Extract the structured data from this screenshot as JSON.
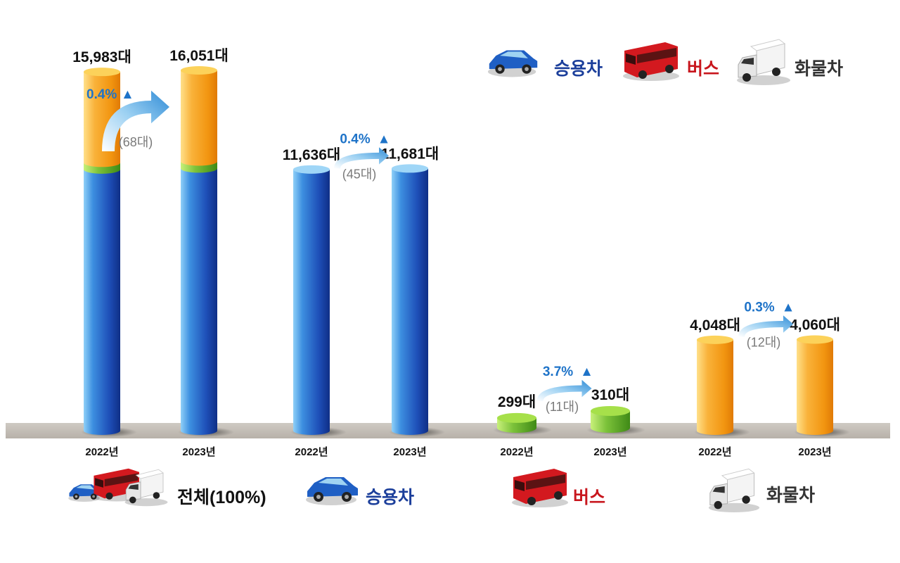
{
  "chart_data": {
    "type": "bar",
    "series_unit": "대",
    "groups": [
      {
        "key": "total",
        "label": "전체(100%)",
        "label_color": "#111111",
        "years": [
          "2022년",
          "2023년"
        ],
        "values": [
          15983,
          16051
        ],
        "value_labels": [
          "15,983대",
          "16,051대"
        ],
        "stacked": true,
        "stack_segments": [
          "승용차",
          "버스",
          "화물차"
        ],
        "stack_colors": [
          "#2a6fd0",
          "#7cc23a",
          "#f5a623"
        ],
        "stack_values": [
          [
            11636,
            299,
            4048
          ],
          [
            11681,
            310,
            4060
          ]
        ],
        "change_pct": "0.4%",
        "change_diff": "(68대)",
        "icons": [
          "sedan-icon",
          "bus-icon",
          "truck-icon"
        ]
      },
      {
        "key": "passenger",
        "label": "승용차",
        "label_color": "#1c3f9b",
        "years": [
          "2022년",
          "2023년"
        ],
        "values": [
          11636,
          11681
        ],
        "value_labels": [
          "11,636대",
          "11,681대"
        ],
        "color": "#2a6fd0",
        "change_pct": "0.4%",
        "change_diff": "(45대)",
        "icons": [
          "sedan-icon"
        ]
      },
      {
        "key": "bus",
        "label": "버스",
        "label_color": "#c8161d",
        "years": [
          "2022년",
          "2023년"
        ],
        "values": [
          299,
          310
        ],
        "value_labels": [
          "299대",
          "310대"
        ],
        "color": "#7cc23a",
        "change_pct": "3.7%",
        "change_diff": "(11대)",
        "icons": [
          "bus-icon"
        ]
      },
      {
        "key": "truck",
        "label": "화물차",
        "label_color": "#333333",
        "years": [
          "2022년",
          "2023년"
        ],
        "values": [
          4048,
          4060
        ],
        "value_labels": [
          "4,048대",
          "4,060대"
        ],
        "color": "#f5a623",
        "change_pct": "0.3%",
        "change_diff": "(12대)",
        "icons": [
          "truck-icon"
        ]
      }
    ],
    "legend": [
      {
        "label": "승용차",
        "color": "#1c3f9b",
        "icon": "sedan-icon"
      },
      {
        "label": "버스",
        "color": "#c8161d",
        "icon": "bus-icon"
      },
      {
        "label": "화물차",
        "color": "#333333",
        "icon": "truck-icon"
      }
    ],
    "legend_placement": "top-right",
    "increase_marker": "▲",
    "grid": false
  }
}
